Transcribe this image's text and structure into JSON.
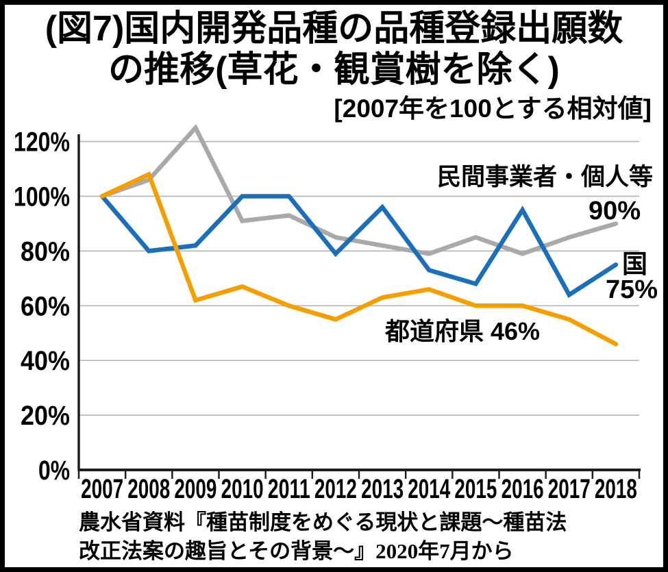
{
  "figure": {
    "title_line1": "(図7)国内開発品種の品種登録出願数",
    "title_line2": "の推移(草花・観賞樹を除く)",
    "subtitle": "[2007年を100とする相対値]",
    "source_line1": "農水省資料『種苗制度をめぐる現状と課題〜種苗法",
    "source_line2": "改正法案の趣旨とその背景〜』2020年7月から"
  },
  "annotations": {
    "private_label": "民間事業者・個人等",
    "private_value": "90%",
    "national_label": "国",
    "national_value": "75%",
    "prefecture_label": "都道府県 46%"
  },
  "chart_data": {
    "type": "line",
    "title": "(図7)国内開発品種の品種登録出願数の推移(草花・観賞樹を除く)",
    "subtitle": "[2007年を100とする相対値]",
    "x": [
      2007,
      2008,
      2009,
      2010,
      2011,
      2012,
      2013,
      2014,
      2015,
      2016,
      2017,
      2018
    ],
    "series": [
      {
        "name": "民間事業者・個人等",
        "color": "#a9a9a9",
        "end_label": "90%",
        "values": [
          100,
          106,
          125,
          91,
          93,
          85,
          82,
          79,
          85,
          79,
          85,
          90
        ]
      },
      {
        "name": "国",
        "color": "#1b6eb9",
        "end_label": "75%",
        "values": [
          100,
          80,
          82,
          100,
          100,
          79,
          96,
          73,
          68,
          95,
          64,
          75
        ]
      },
      {
        "name": "都道府県",
        "color": "#f59e00",
        "end_label": "46%",
        "values": [
          100,
          108,
          62,
          67,
          60,
          55,
          63,
          66,
          60,
          60,
          55,
          46
        ]
      }
    ],
    "ylim": [
      0,
      130
    ],
    "yticks": [
      {
        "value": 120,
        "label": "120%"
      },
      {
        "value": 100,
        "label": "100%"
      },
      {
        "value": 80,
        "label": "80%"
      },
      {
        "value": 60,
        "label": "60%"
      },
      {
        "value": 40,
        "label": "40%"
      },
      {
        "value": 20,
        "label": "20%"
      },
      {
        "value": 0,
        "label": "0%"
      }
    ],
    "grid": true,
    "legend_position": "inline-annotations",
    "colors": {
      "grid": "#b7b7b7",
      "axis": "#1f1f1f"
    }
  }
}
